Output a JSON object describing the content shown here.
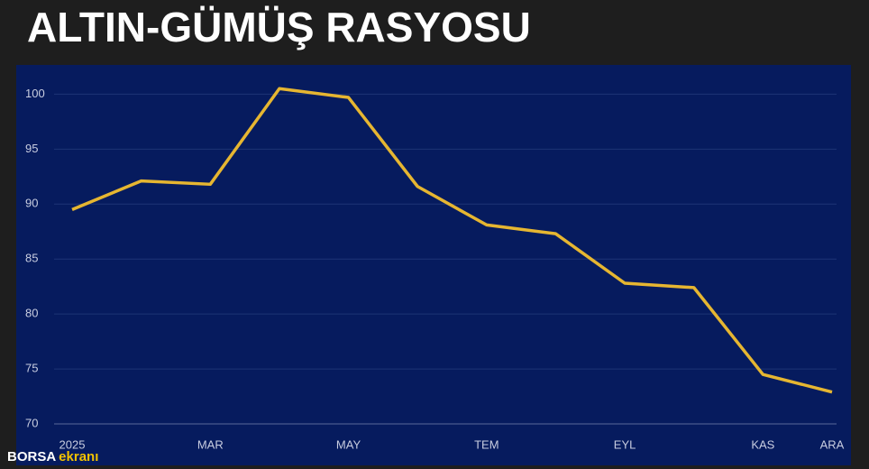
{
  "chart_data": {
    "type": "line",
    "title": "ALTIN-GÜMÜŞ RASYOSU",
    "categories": [
      "2025",
      null,
      "MAR",
      null,
      "MAY",
      null,
      "TEM",
      null,
      "EYL",
      null,
      "KAS",
      "ARA"
    ],
    "values": [
      89.5,
      92.1,
      91.8,
      100.5,
      99.7,
      91.6,
      88.1,
      87.3,
      82.8,
      82.4,
      74.5,
      72.9
    ],
    "color": "#e6b631",
    "ylim": [
      70,
      102
    ],
    "yticks": [
      70,
      75,
      80,
      85,
      90,
      95,
      100
    ],
    "grid": true
  },
  "watermark": {
    "brand": "BORSA",
    "suffix": "ekranı"
  }
}
